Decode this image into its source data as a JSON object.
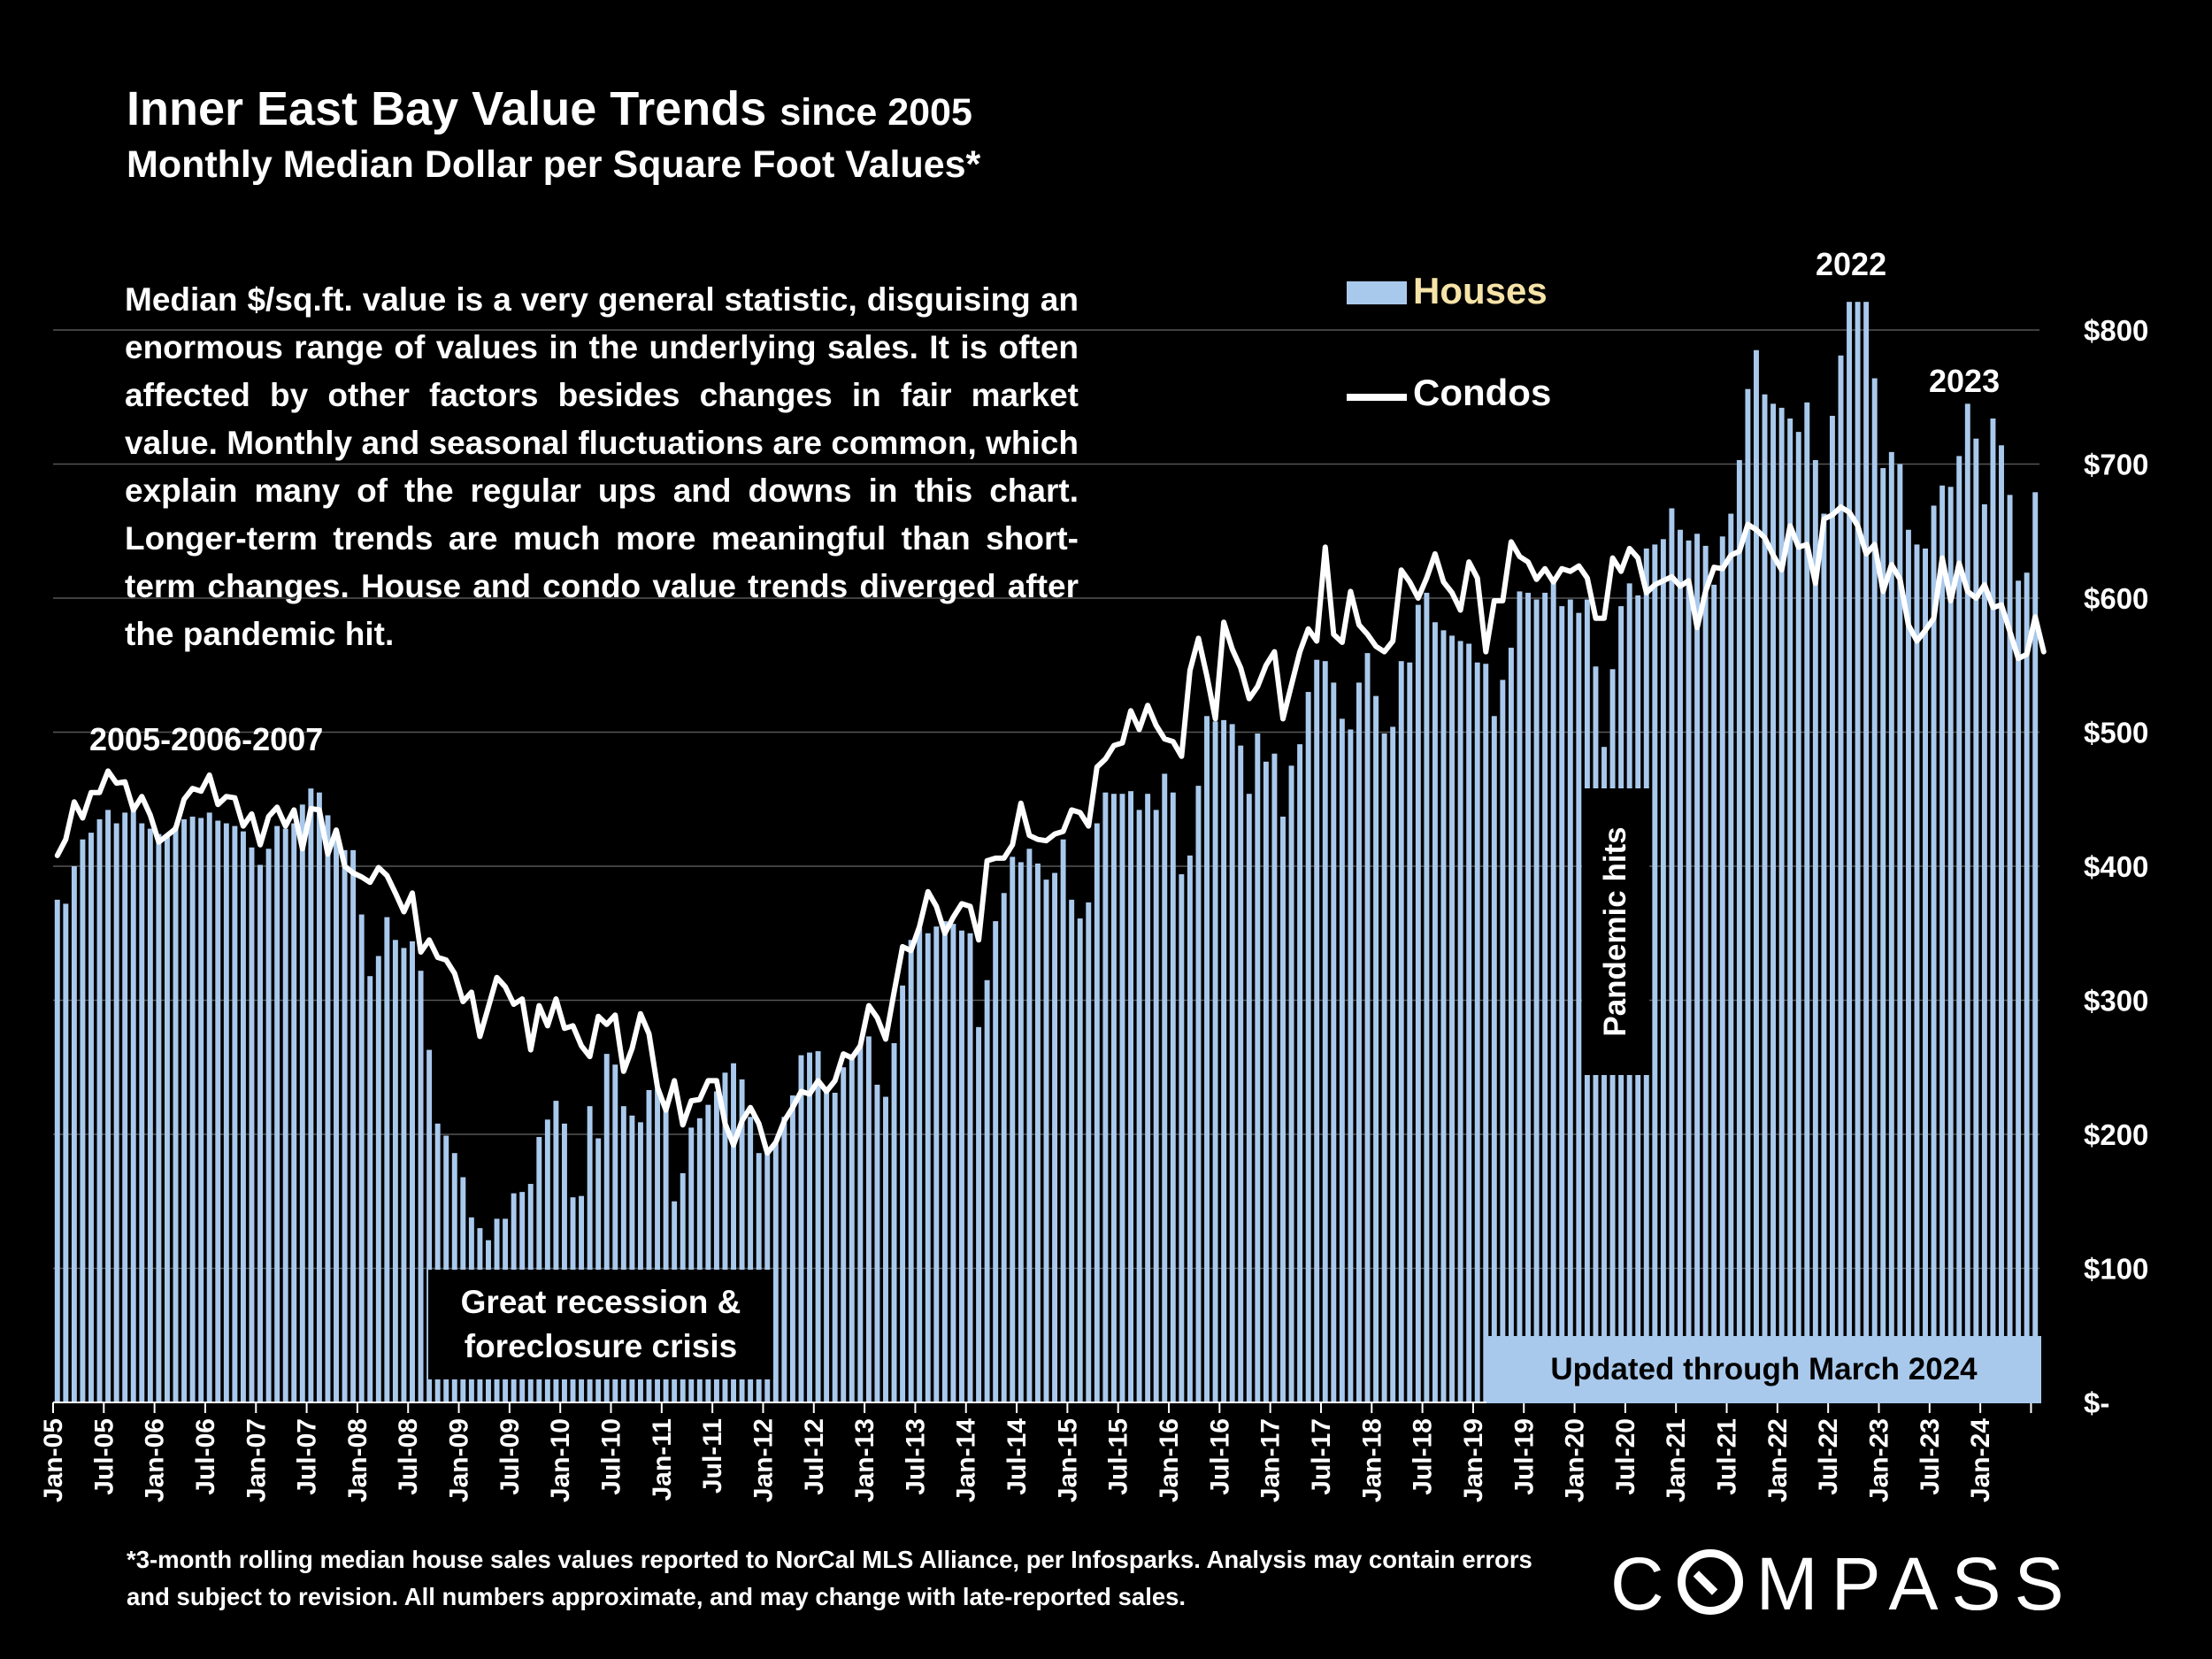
{
  "title": {
    "main": "Inner East Bay Value Trends",
    "since": "since 2005"
  },
  "subtitle": "Monthly Median Dollar per Square Foot Values*",
  "description": "Median $/sq.ft. value is a very general statistic, disguising an enormous range of values in the underlying sales. It is often affected by other factors besides changes in fair market value. Monthly and seasonal fluctuations are common, which explain many of the regular ups and downs in this chart. Longer-term trends are much more meaningful than short-term changes. House and condo value trends diverged after the pandemic hit.",
  "footnote": "*3-month rolling median house sales values reported to NorCal MLS Alliance, per Infosparks. Analysis may contain errors and subject to revision. All numbers approximate, and may change with late-reported sales.",
  "logo": "COMPASS",
  "colors": {
    "houses": "#a9c9ec",
    "condos": "#ffffff",
    "background": "#000000",
    "legend_houses_text": "#f6e3a8",
    "grid": "#555555"
  },
  "chart_data": {
    "type": "bar",
    "ylim": [
      0,
      830
    ],
    "y_ticks": [
      0,
      100,
      200,
      300,
      400,
      500,
      600,
      700,
      800
    ],
    "y_tick_labels": [
      "$-",
      "$100",
      "$200",
      "$300",
      "$400",
      "$500",
      "$600",
      "$700",
      "$800"
    ],
    "x_tick_labels": [
      "Jan-05",
      "Jul-05",
      "Jan-06",
      "Jul-06",
      "Jan-07",
      "Jul-07",
      "Jan-08",
      "Jul-08",
      "Jan-09",
      "Jul-09",
      "Jan-10",
      "Jul-10",
      "Jan-11",
      "Jul-11",
      "Jan-12",
      "Jul-12",
      "Jan-13",
      "Jul-13",
      "Jan-14",
      "Jul-14",
      "Jan-15",
      "Jul-15",
      "Jan-16",
      "Jul-16",
      "Jan-17",
      "Jul-17",
      "Jan-18",
      "Jul-18",
      "Jan-19",
      "Jul-19",
      "Jan-20",
      "Jul-20",
      "Jan-21",
      "Jul-21",
      "Jan-22",
      "Jul-22",
      "Jan-23",
      "Jul-23",
      "Jan-24"
    ],
    "x_range": [
      "Jan-05",
      "Mar-24"
    ],
    "legend": [
      {
        "name": "Houses",
        "type": "bar"
      },
      {
        "name": "Condos",
        "type": "line"
      }
    ],
    "legend_position": "top-right",
    "grid": true,
    "series": [
      {
        "name": "Houses",
        "type": "bar",
        "values": [
          375,
          372,
          400,
          420,
          425,
          435,
          442,
          432,
          440,
          445,
          432,
          428,
          424,
          424,
          430,
          435,
          437,
          436,
          440,
          434,
          432,
          430,
          426,
          414,
          401,
          413,
          430,
          428,
          432,
          446,
          458,
          455,
          438,
          422,
          412,
          412,
          364,
          318,
          333,
          362,
          345,
          339,
          344,
          322,
          263,
          208,
          199,
          186,
          168,
          138,
          130,
          121,
          137,
          137,
          156,
          157,
          163,
          198,
          211,
          225,
          208,
          153,
          154,
          221,
          197,
          260,
          252,
          221,
          214,
          209,
          233,
          234,
          221,
          150,
          171,
          205,
          212,
          222,
          232,
          246,
          253,
          241,
          213,
          186,
          189,
          193,
          213,
          229,
          259,
          261,
          262,
          234,
          231,
          250,
          257,
          267,
          273,
          237,
          228,
          268,
          311,
          345,
          354,
          350,
          355,
          359,
          357,
          352,
          350,
          280,
          315,
          359,
          380,
          407,
          403,
          413,
          402,
          390,
          395,
          420,
          375,
          361,
          373,
          432,
          455,
          454,
          454,
          456,
          442,
          454,
          442,
          469,
          455,
          394,
          408,
          460,
          512,
          508,
          509,
          506,
          490,
          454,
          499,
          478,
          484,
          437,
          475,
          491,
          530,
          554,
          553,
          537,
          510,
          502,
          537,
          559,
          527,
          499,
          504,
          553,
          552,
          595,
          604,
          582,
          576,
          572,
          568,
          566,
          552,
          551,
          512,
          539,
          563,
          605,
          604,
          599,
          604,
          612,
          594,
          599,
          589,
          599,
          549,
          489,
          547,
          594,
          611,
          602,
          637,
          640,
          644,
          667,
          651,
          643,
          648,
          639,
          610,
          646,
          663,
          703,
          756,
          785,
          752,
          745,
          742,
          734,
          724,
          746,
          703,
          663,
          736,
          781,
          821,
          821,
          821,
          764,
          697,
          709,
          700,
          651,
          640,
          637,
          669,
          684,
          683,
          706,
          745,
          719,
          670,
          734,
          714,
          677,
          613,
          619,
          679
        ]
      },
      {
        "name": "Condos",
        "type": "line",
        "values": [
          408,
          420,
          448,
          436,
          455,
          455,
          471,
          462,
          463,
          442,
          452,
          438,
          418,
          423,
          428,
          450,
          458,
          456,
          468,
          446,
          452,
          451,
          430,
          439,
          416,
          437,
          444,
          430,
          442,
          413,
          443,
          442,
          409,
          427,
          400,
          395,
          392,
          388,
          399,
          393,
          380,
          366,
          380,
          336,
          345,
          332,
          330,
          320,
          299,
          306,
          273,
          295,
          317,
          310,
          297,
          301,
          263,
          296,
          281,
          301,
          279,
          281,
          266,
          258,
          288,
          282,
          289,
          247,
          264,
          290,
          275,
          235,
          218,
          240,
          207,
          225,
          226,
          240,
          240,
          208,
          192,
          210,
          220,
          208,
          186,
          194,
          210,
          220,
          232,
          230,
          240,
          232,
          240,
          260,
          257,
          266,
          296,
          287,
          271,
          306,
          340,
          337,
          355,
          381,
          370,
          350,
          362,
          372,
          370,
          345,
          404,
          406,
          406,
          416,
          447,
          423,
          420,
          419,
          424,
          426,
          442,
          440,
          430,
          474,
          480,
          490,
          492,
          516,
          502,
          520,
          505,
          495,
          493,
          482,
          546,
          570,
          542,
          510,
          582,
          562,
          548,
          525,
          534,
          550,
          560,
          510,
          535,
          560,
          577,
          568,
          638,
          573,
          567,
          605,
          580,
          573,
          564,
          560,
          568,
          621,
          612,
          600,
          615,
          633,
          612,
          604,
          591,
          627,
          615,
          560,
          598,
          598,
          642,
          631,
          627,
          614,
          622,
          612,
          622,
          620,
          624,
          615,
          585,
          585,
          630,
          620,
          637,
          630,
          604,
          610,
          613,
          616,
          609,
          613,
          578,
          605,
          623,
          622,
          632,
          635,
          655,
          651,
          645,
          632,
          621,
          654,
          638,
          640,
          611,
          659,
          662,
          668,
          664,
          654,
          633,
          640,
          605,
          625,
          614,
          580,
          568,
          576,
          585,
          630,
          598,
          626,
          605,
          600,
          610,
          593,
          595,
          575,
          555,
          558,
          586,
          560
        ]
      }
    ],
    "annotations": [
      "2005-2006-2007",
      "Great recession & foreclosure crisis",
      "Pandemic hits",
      "2022",
      "2023",
      "Updated through March 2024"
    ]
  },
  "annotations": {
    "era_2005": "2005-2006-2007",
    "recession_line1": "Great recession &",
    "recession_line2": "foreclosure crisis",
    "pandemic": "Pandemic hits",
    "peak_2022": "2022",
    "peak_2023": "2023",
    "updated": "Updated through March 2024"
  }
}
